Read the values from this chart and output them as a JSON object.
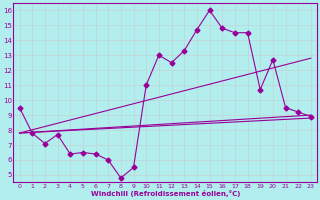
{
  "xlabel": "Windchill (Refroidissement éolien,°C)",
  "bg_color": "#b2eeee",
  "line_color": "#990099",
  "grid_color": "#c0d8d8",
  "xlim": [
    -0.5,
    23.5
  ],
  "ylim": [
    4.5,
    16.5
  ],
  "xticks": [
    0,
    1,
    2,
    3,
    4,
    5,
    6,
    7,
    8,
    9,
    10,
    11,
    12,
    13,
    14,
    15,
    16,
    17,
    18,
    19,
    20,
    21,
    22,
    23
  ],
  "yticks": [
    5,
    6,
    7,
    8,
    9,
    10,
    11,
    12,
    13,
    14,
    15,
    16
  ],
  "series1_x": [
    0,
    1,
    2,
    3,
    4,
    5,
    6,
    7,
    8,
    9,
    10,
    11,
    12,
    13,
    14,
    15,
    16,
    17,
    18,
    19,
    20,
    21,
    22,
    23
  ],
  "series1_y": [
    9.5,
    7.8,
    7.1,
    7.7,
    6.4,
    6.5,
    6.4,
    6.0,
    4.8,
    5.5,
    11.0,
    13.0,
    12.5,
    13.3,
    14.7,
    16.0,
    14.8,
    14.5,
    14.5,
    10.7,
    12.7,
    9.5,
    9.2,
    8.9
  ],
  "line1_x": [
    0,
    23
  ],
  "line1_y": [
    7.8,
    9.0
  ],
  "line2_x": [
    0,
    23
  ],
  "line2_y": [
    7.8,
    12.8
  ],
  "line3_x": [
    0,
    23
  ],
  "line3_y": [
    7.8,
    8.8
  ]
}
